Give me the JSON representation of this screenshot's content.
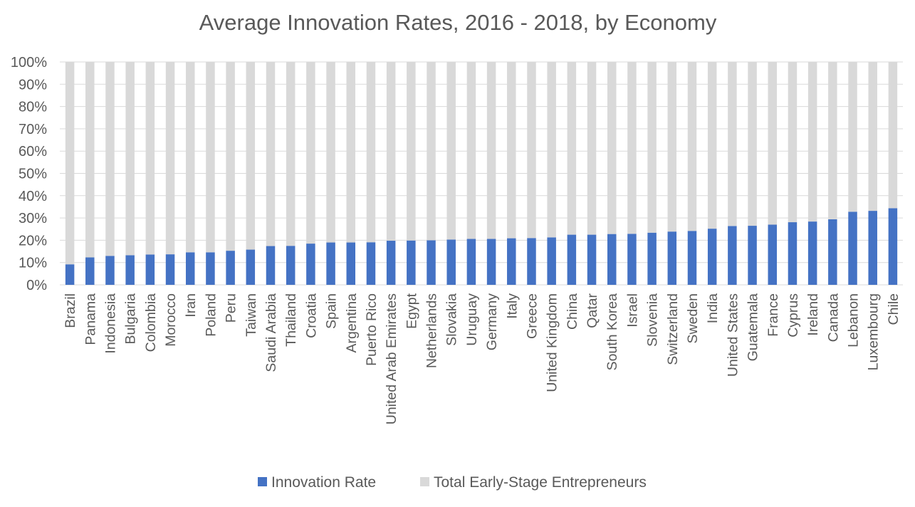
{
  "chart_data": {
    "type": "bar",
    "stacked": true,
    "percent_stacked": true,
    "title": "Average Innovation Rates, 2016 - 2018, by Economy",
    "xlabel": "",
    "ylabel": "",
    "ylim": [
      0,
      100
    ],
    "y_ticks": [
      "0%",
      "10%",
      "20%",
      "30%",
      "40%",
      "50%",
      "60%",
      "70%",
      "80%",
      "90%",
      "100%"
    ],
    "grid": true,
    "legend_position": "bottom",
    "categories": [
      "Brazil",
      "Panama",
      "Indonesia",
      "Bulgaria",
      "Colombia",
      "Morocco",
      "Iran",
      "Poland",
      "Peru",
      "Taiwan",
      "Saudi Arabia",
      "Thailand",
      "Croatia",
      "Spain",
      "Argentina",
      "Puerto Rico",
      "United Arab Emirates",
      "Egypt",
      "Netherlands",
      "Slovakia",
      "Uruguay",
      "Germany",
      "Italy",
      "Greece",
      "United Kingdom",
      "China",
      "Qatar",
      "South Korea",
      "Israel",
      "Slovenia",
      "Switzerland",
      "Sweden",
      "India",
      "United States",
      "Guatemala",
      "France",
      "Cyprus",
      "Ireland",
      "Canada",
      "Lebanon",
      "Luxembourg",
      "Chile"
    ],
    "series": [
      {
        "name": "Innovation Rate",
        "color": "#4472c4",
        "values": [
          9.2,
          12.3,
          13.0,
          13.3,
          13.6,
          13.7,
          14.6,
          14.6,
          15.3,
          15.8,
          17.4,
          17.5,
          18.5,
          19.0,
          19.0,
          19.1,
          19.8,
          19.9,
          20.0,
          20.3,
          20.6,
          20.6,
          20.9,
          21.0,
          21.3,
          22.5,
          22.5,
          22.8,
          22.9,
          23.4,
          23.9,
          24.2,
          25.2,
          26.4,
          26.5,
          27.0,
          28.1,
          28.4,
          29.4,
          32.8,
          33.2,
          34.4
        ]
      },
      {
        "name": "Total Early-Stage Entrepreneurs",
        "color": "#d9d9d9",
        "values": [
          90.8,
          87.7,
          87.0,
          86.7,
          86.4,
          86.3,
          85.4,
          85.4,
          84.7,
          84.2,
          82.6,
          82.5,
          81.5,
          81.0,
          81.0,
          80.9,
          80.2,
          80.1,
          80.0,
          79.7,
          79.4,
          79.4,
          79.1,
          79.0,
          78.7,
          77.5,
          77.5,
          77.2,
          77.1,
          76.6,
          76.1,
          75.8,
          74.8,
          73.6,
          73.5,
          73.0,
          71.9,
          71.6,
          70.6,
          67.2,
          66.8,
          65.6
        ]
      }
    ]
  },
  "colors": {
    "title_text": "#595959",
    "axis_text": "#595959",
    "gridline": "#d9d9d9"
  }
}
